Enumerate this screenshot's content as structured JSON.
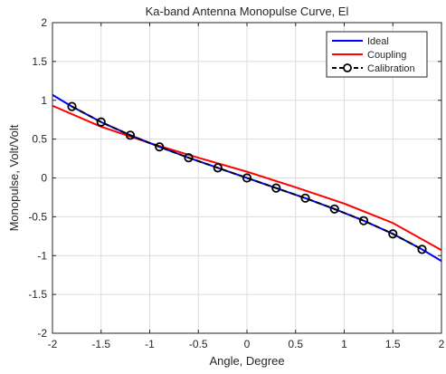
{
  "chart_data": {
    "type": "line",
    "title": "Ka-band Antenna Monopulse Curve, El",
    "xlabel": "Angle, Degree",
    "ylabel": "Monopulse, Volt/Volt",
    "xlim": [
      -2,
      2
    ],
    "ylim": [
      -2,
      2
    ],
    "xticks": [
      "-2",
      "-1.5",
      "-1",
      "-0.5",
      "0",
      "0.5",
      "1",
      "1.5",
      "2"
    ],
    "yticks": [
      "-2",
      "-1.5",
      "-1",
      "-0.5",
      "0",
      "0.5",
      "1",
      "1.5",
      "2"
    ],
    "grid": true,
    "legend_position": "top-right",
    "series": [
      {
        "name": "Ideal",
        "color": "#0000ff",
        "style": "solid",
        "x": [
          -2,
          -1.8,
          -1.5,
          -1.2,
          -0.9,
          -0.6,
          -0.3,
          0,
          0.3,
          0.6,
          0.9,
          1.2,
          1.5,
          1.8,
          2
        ],
        "y": [
          1.07,
          0.92,
          0.72,
          0.55,
          0.4,
          0.26,
          0.13,
          0,
          -0.13,
          -0.26,
          -0.4,
          -0.55,
          -0.72,
          -0.92,
          -1.07
        ]
      },
      {
        "name": "Coupling",
        "color": "#ff0000",
        "style": "solid",
        "x": [
          -2,
          -1.5,
          -1,
          -0.5,
          0,
          0.5,
          1,
          1.5,
          2
        ],
        "y": [
          0.93,
          0.66,
          0.45,
          0.26,
          0.08,
          -0.12,
          -0.33,
          -0.58,
          -0.93
        ]
      },
      {
        "name": "Calibration",
        "color": "#000000",
        "style": "dashed",
        "marker": "circle",
        "x": [
          -1.8,
          -1.5,
          -1.2,
          -0.9,
          -0.6,
          -0.3,
          0,
          0.3,
          0.6,
          0.9,
          1.2,
          1.5,
          1.8
        ],
        "y": [
          0.92,
          0.72,
          0.55,
          0.4,
          0.26,
          0.13,
          0,
          -0.13,
          -0.26,
          -0.4,
          -0.55,
          -0.72,
          -0.92
        ]
      }
    ]
  }
}
